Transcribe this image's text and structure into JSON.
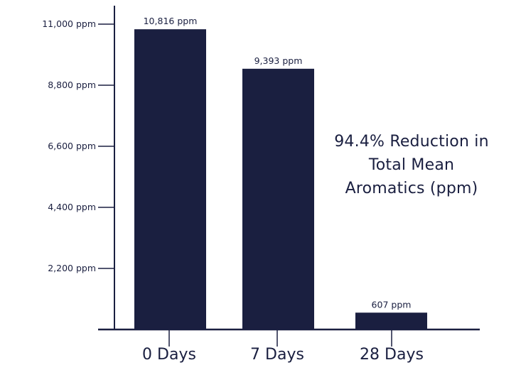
{
  "chart_data": {
    "type": "bar",
    "title": "",
    "xlabel": "",
    "ylabel": "",
    "categories": [
      "0 Days",
      "7 Days",
      "28 Days"
    ],
    "values": [
      10816,
      9393,
      607
    ],
    "data_labels": [
      "10,816 ppm",
      "9,393 ppm",
      "607 ppm"
    ],
    "y_ticks": [
      {
        "value": 2200,
        "label": "2,200 ppm"
      },
      {
        "value": 4400,
        "label": "4,400 ppm"
      },
      {
        "value": 6600,
        "label": "6,600 ppm"
      },
      {
        "value": 8800,
        "label": "8,800 ppm"
      },
      {
        "value": 11000,
        "label": "11,000 ppm"
      }
    ],
    "ylim": [
      0,
      11000
    ],
    "grid": false,
    "legend": "none",
    "annotation": [
      "94.4% Reduction in",
      "Total Mean",
      "Aromatics (ppm)"
    ],
    "colors": {
      "bar": "#1a1f40",
      "axis": "#1a1f40",
      "text": "#1a1f40"
    }
  }
}
